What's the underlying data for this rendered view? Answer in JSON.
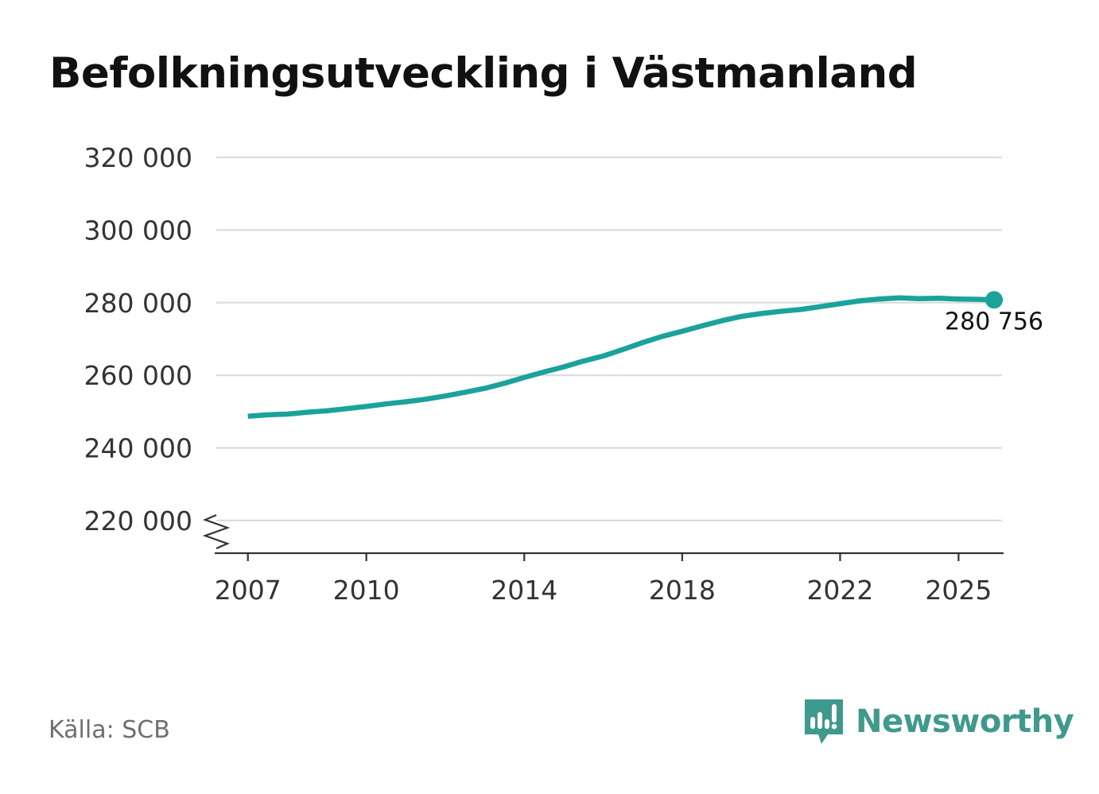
{
  "title": "Befolkningsutveckling i Västmanland",
  "source": "Källa: SCB",
  "brand": {
    "name": "Newsworthy",
    "icon": "newsworthy-logo-icon",
    "color": "#3d9a8d"
  },
  "chart_data": {
    "type": "line",
    "title": "Befolkningsutveckling i Västmanland",
    "xlabel": "",
    "ylabel": "",
    "color": "#1aa39a",
    "grid": true,
    "axis_break": true,
    "ylim": [
      211000,
      320000
    ],
    "xlim": [
      2006.2,
      2026.1
    ],
    "yticks": [
      220000,
      240000,
      260000,
      280000,
      300000,
      320000
    ],
    "ytick_labels": [
      "220 000",
      "240 000",
      "260 000",
      "280 000",
      "300 000",
      "320 000"
    ],
    "xticks": [
      2007,
      2010,
      2014,
      2018,
      2022,
      2025
    ],
    "xtick_labels": [
      "2007",
      "2010",
      "2014",
      "2018",
      "2022",
      "2025"
    ],
    "last_label": "280 756",
    "x": [
      2007.0,
      2007.5,
      2008.0,
      2008.5,
      2009.0,
      2009.5,
      2010.0,
      2010.5,
      2011.0,
      2011.5,
      2012.0,
      2012.5,
      2013.0,
      2013.5,
      2014.0,
      2014.5,
      2015.0,
      2015.5,
      2016.0,
      2016.5,
      2017.0,
      2017.5,
      2018.0,
      2018.5,
      2019.0,
      2019.5,
      2020.0,
      2020.5,
      2021.0,
      2021.5,
      2022.0,
      2022.5,
      2023.0,
      2023.5,
      2024.0,
      2024.5,
      2025.0,
      2025.5,
      2025.9
    ],
    "values": [
      248700,
      249100,
      249300,
      249800,
      250200,
      250800,
      251400,
      252100,
      252700,
      253400,
      254300,
      255300,
      256400,
      257800,
      259400,
      260900,
      262300,
      263900,
      265300,
      267100,
      269000,
      270700,
      272100,
      273600,
      275000,
      276200,
      277000,
      277600,
      278100,
      278900,
      279700,
      280500,
      281000,
      281300,
      281100,
      281200,
      281000,
      280900,
      280756
    ]
  }
}
